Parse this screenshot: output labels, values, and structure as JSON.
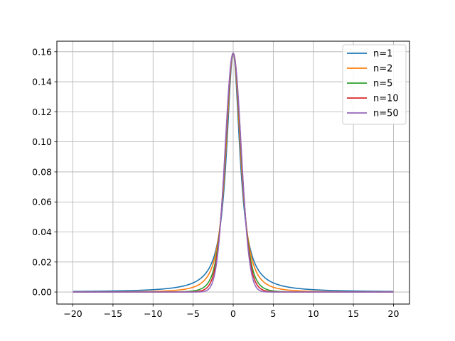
{
  "chart_data": {
    "type": "line",
    "title": "",
    "xlabel": "",
    "ylabel": "",
    "xlim": [
      -22,
      22
    ],
    "ylim": [
      -0.008,
      0.167
    ],
    "xticks": [
      -20,
      -15,
      -10,
      -5,
      0,
      5,
      10,
      15,
      20
    ],
    "xtick_labels": [
      "−20",
      "−15",
      "−10",
      "−5",
      "0",
      "5",
      "10",
      "15",
      "20"
    ],
    "yticks": [
      0.0,
      0.02,
      0.04,
      0.06,
      0.08,
      0.1,
      0.12,
      0.14,
      0.16
    ],
    "ytick_labels": [
      "0.00",
      "0.02",
      "0.04",
      "0.06",
      "0.08",
      "0.10",
      "0.12",
      "0.14",
      "0.16"
    ],
    "grid": true,
    "legend_position": "top-right",
    "x_range": [
      -20,
      20
    ],
    "peak_value": 0.159,
    "series": [
      {
        "name": "n=1",
        "color": "#1f77b4",
        "n": 1
      },
      {
        "name": "n=2",
        "color": "#ff7f0e",
        "n": 2
      },
      {
        "name": "n=5",
        "color": "#2ca02c",
        "n": 5
      },
      {
        "name": "n=10",
        "color": "#d62728",
        "n": 10
      },
      {
        "name": "n=50",
        "color": "#9467bd",
        "n": 50
      }
    ]
  }
}
